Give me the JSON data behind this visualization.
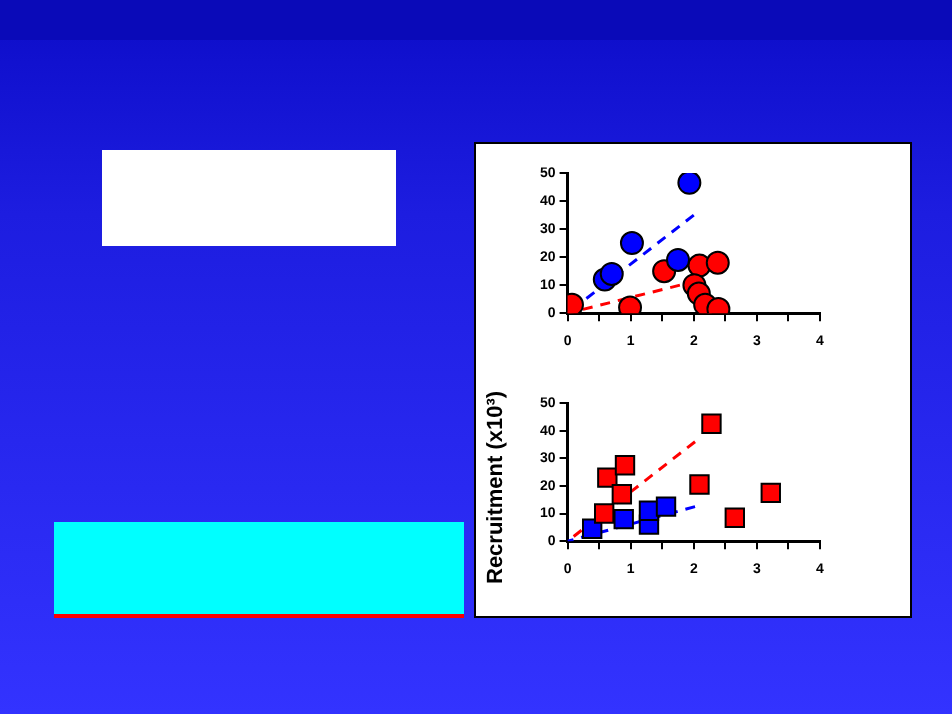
{
  "chart_data": [
    {
      "type": "scatter",
      "xlim": [
        0,
        4
      ],
      "xticks": [
        0,
        {
          "value": 0.5,
          "label": null
        },
        1,
        {
          "value": 1.5,
          "label": null
        },
        2,
        {
          "value": 2.5,
          "label": null
        },
        3,
        {
          "value": 3.5,
          "label": null
        },
        4
      ],
      "ylim": [
        0,
        50
      ],
      "yticks": [
        0,
        10,
        20,
        30,
        40,
        50
      ],
      "grid": false,
      "legend": false,
      "marker": "circle",
      "series": [
        {
          "color": "#0000ff",
          "x": [
            0.59,
            0.7,
            1.02,
            1.75,
            1.93
          ],
          "values": [
            12,
            14,
            25,
            19,
            46.5
          ]
        },
        {
          "color": "#ff0000",
          "x": [
            0.07,
            0.99,
            1.53,
            2.09,
            2.38,
            2.01,
            2.08,
            2.18,
            2.39
          ],
          "values": [
            3,
            2,
            15,
            17,
            18,
            10,
            7,
            3,
            1.5
          ]
        },
        {
          "type": "line",
          "color": "#0000ff",
          "x": [
            0,
            2
          ],
          "values": [
            0,
            35
          ],
          "marker": "none",
          "line_style": "dashed"
        },
        {
          "type": "line",
          "color": "#ff0000",
          "x": [
            0,
            1.78
          ],
          "values": [
            0,
            10
          ],
          "marker": "none",
          "line_style": "dashed"
        }
      ]
    },
    {
      "type": "scatter",
      "ylabel": "Recruitment (x10³)",
      "xlim": [
        0,
        4
      ],
      "xticks": [
        0,
        {
          "value": 0.5,
          "label": null
        },
        1,
        {
          "value": 1.5,
          "label": null
        },
        2,
        {
          "value": 2.5,
          "label": null
        },
        3,
        {
          "value": 3.5,
          "label": null
        },
        4
      ],
      "ylim": [
        0,
        50
      ],
      "yticks": [
        0,
        10,
        20,
        30,
        40,
        50
      ],
      "grid": false,
      "legend": false,
      "marker": "square",
      "series": [
        {
          "color": "#ff0000",
          "x": [
            0.58,
            0.63,
            0.91,
            0.86,
            2.28,
            2.09,
            2.65,
            3.22
          ],
          "values": [
            10,
            23,
            27.5,
            17,
            42.5,
            20.5,
            8.5,
            17.5
          ]
        },
        {
          "color": "#0000ff",
          "x": [
            0.39,
            0.89,
            1.29,
            1.29,
            1.56
          ],
          "values": [
            4.5,
            8,
            6,
            11,
            12.5
          ]
        },
        {
          "type": "line",
          "color": "#ff0000",
          "x": [
            0,
            2.02
          ],
          "values": [
            0,
            36
          ],
          "marker": "none",
          "line_style": "dashed"
        },
        {
          "type": "line",
          "color": "#0000ff",
          "x": [
            0,
            2.02
          ],
          "values": [
            0,
            12.5
          ],
          "marker": "none",
          "line_style": "dashed"
        }
      ]
    }
  ]
}
